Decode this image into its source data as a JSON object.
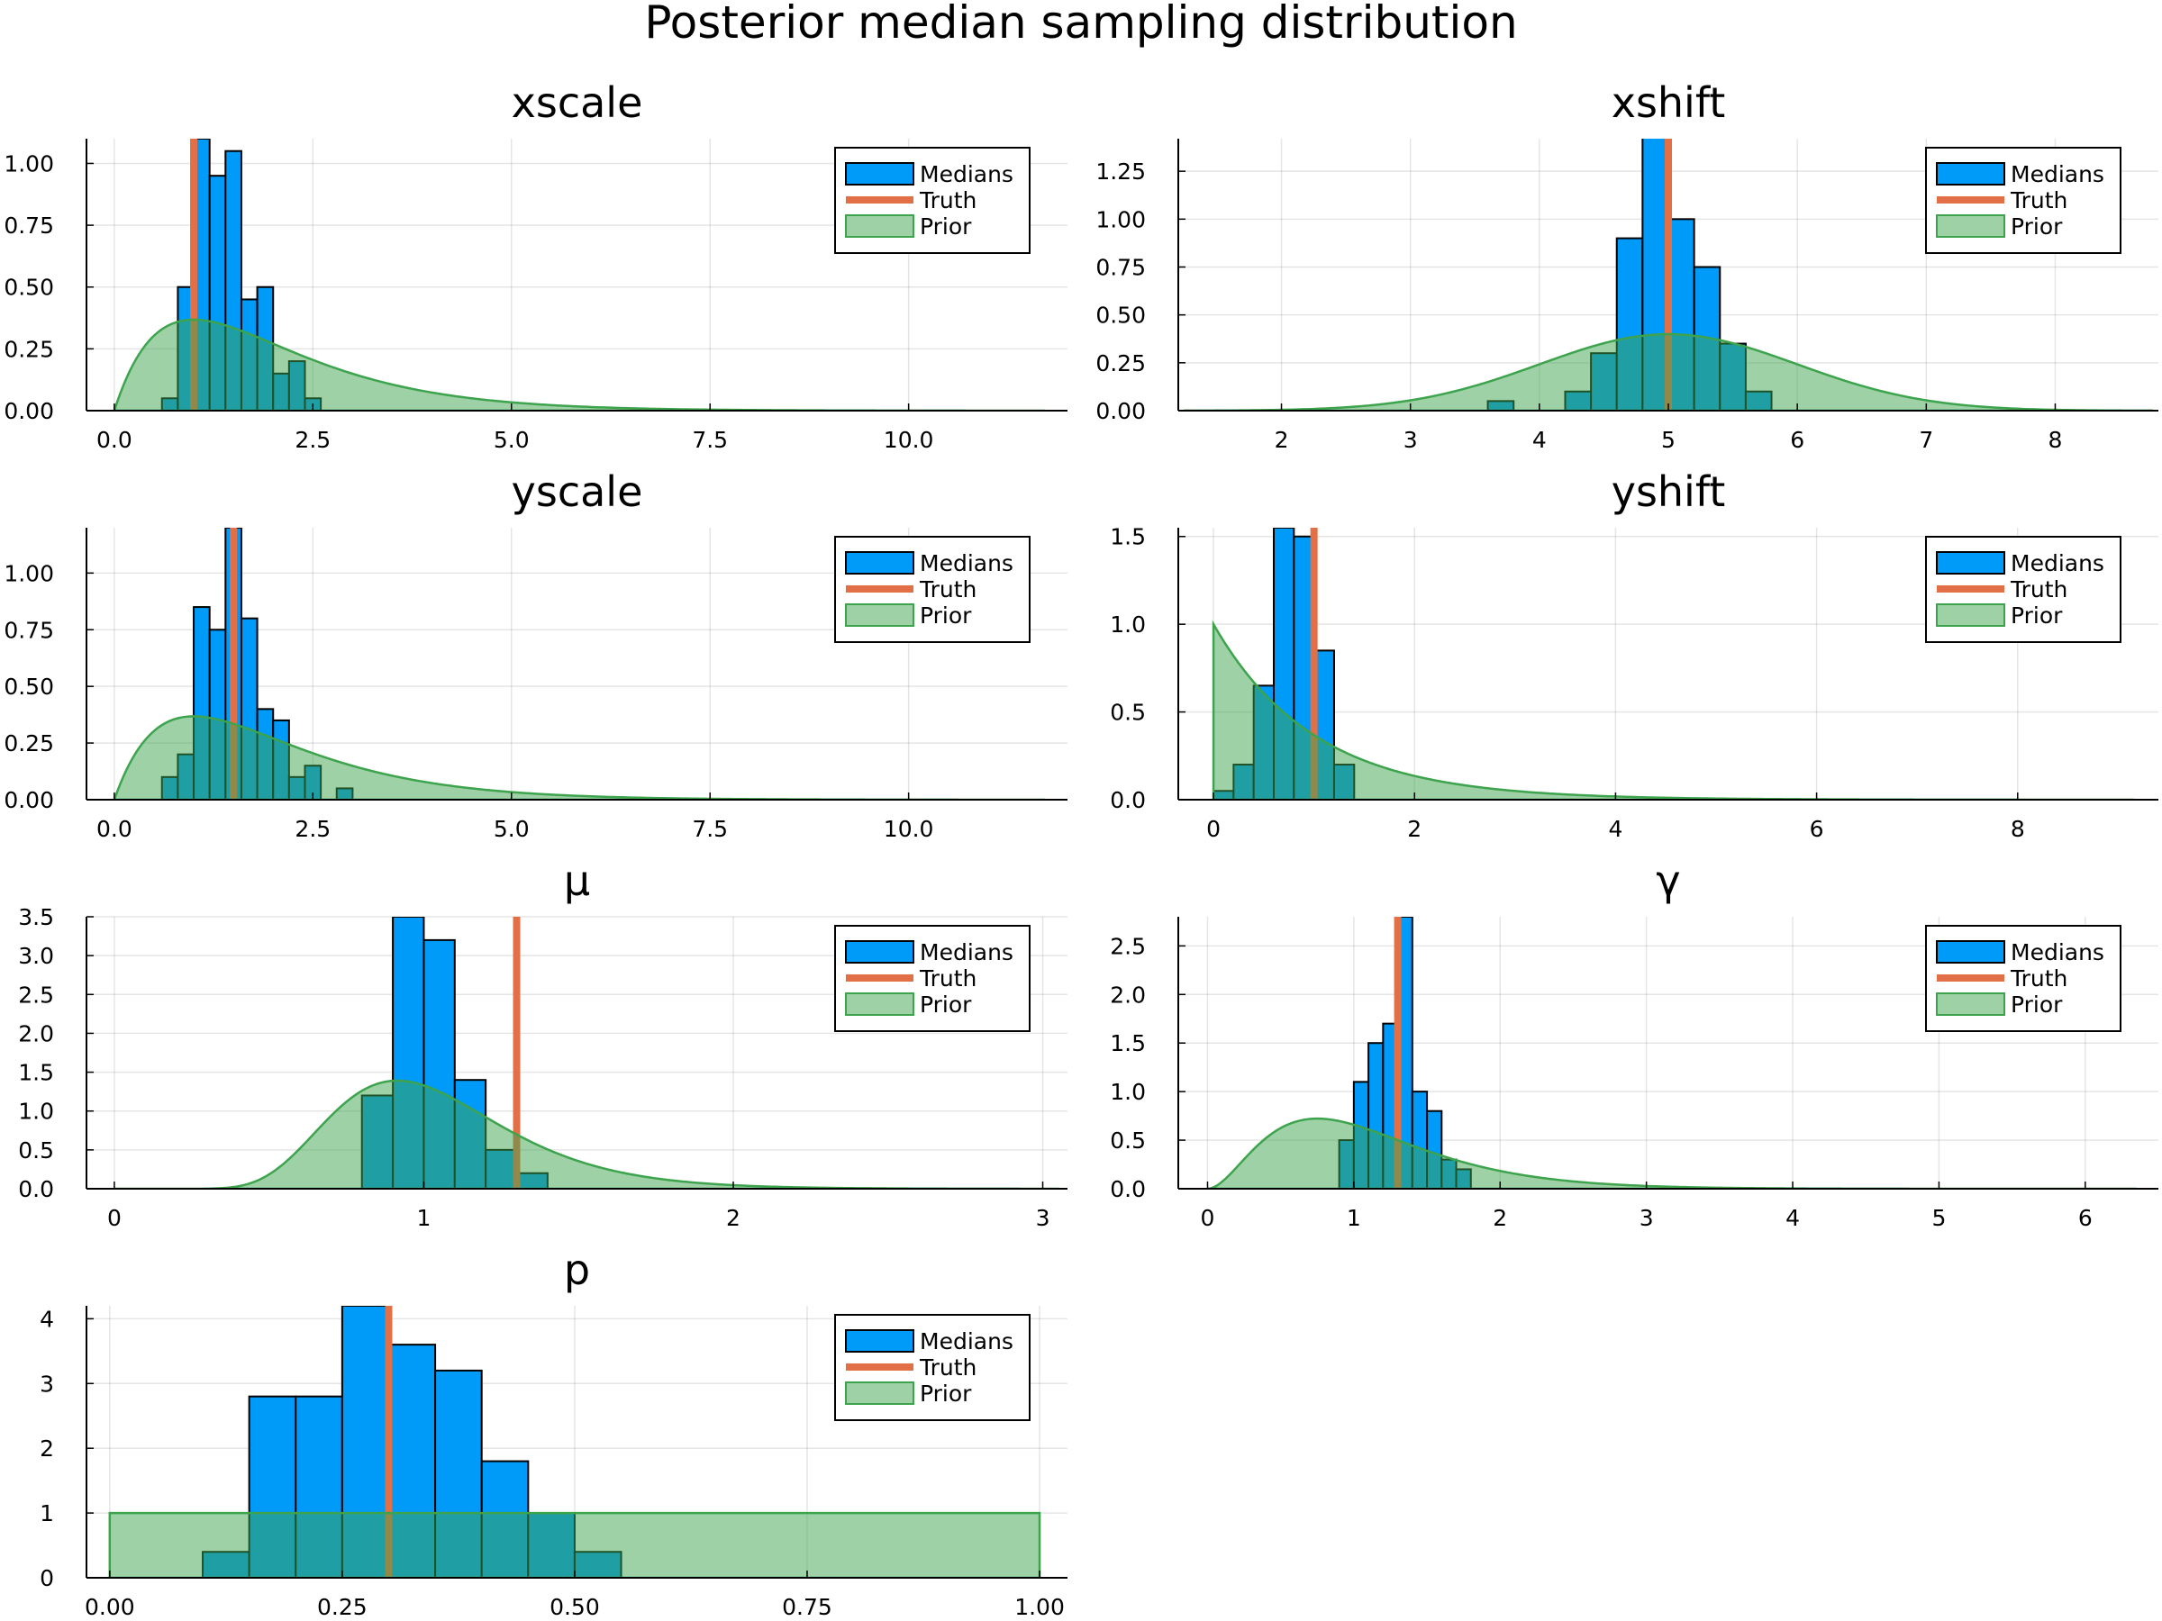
{
  "figure": {
    "title": "Posterior median sampling distribution",
    "colors": {
      "medians": "#009af9",
      "truth": "#e26f46",
      "prior": "#3da44d",
      "overlap": "#1b9a9e"
    }
  },
  "legend_labels": [
    "Medians",
    "Truth",
    "Prior"
  ],
  "chart_data": [
    {
      "type": "bar",
      "title": "xscale",
      "xlim": [
        -0.35,
        12.0
      ],
      "ylim": [
        0,
        1.1
      ],
      "xticks": [
        0,
        2.5,
        5,
        7.5,
        10
      ],
      "xticklabels": [
        "0.0",
        "2.5",
        "5.0",
        "7.5",
        "10.0"
      ],
      "yticks": [
        0,
        0.25,
        0.5,
        0.75,
        1.0
      ],
      "yticklabels": [
        "0.00",
        "0.25",
        "0.50",
        "0.75",
        "1.00"
      ],
      "legend": "top-right",
      "grid": true,
      "bin_width": 0.2,
      "bins": [
        0.6,
        0.8,
        1.0,
        1.2,
        1.4,
        1.6,
        1.8,
        2.0,
        2.2,
        2.4
      ],
      "values": [
        0.05,
        0.5,
        1.1,
        0.95,
        1.05,
        0.45,
        0.5,
        0.15,
        0.2,
        0.05
      ],
      "truth": 1.0,
      "prior": {
        "kind": "gamma",
        "shape": 2,
        "scale": 1,
        "xmax": 11.7
      }
    },
    {
      "type": "bar",
      "title": "xshift",
      "xlim": [
        1.2,
        8.8
      ],
      "ylim": [
        0,
        1.42
      ],
      "xticks": [
        2,
        3,
        4,
        5,
        6,
        7,
        8
      ],
      "xticklabels": [
        "2",
        "3",
        "4",
        "5",
        "6",
        "7",
        "8"
      ],
      "yticks": [
        0,
        0.25,
        0.5,
        0.75,
        1.0,
        1.25
      ],
      "yticklabels": [
        "0.00",
        "0.25",
        "0.50",
        "0.75",
        "1.00",
        "1.25"
      ],
      "legend": "top-right",
      "grid": true,
      "bin_width": 0.2,
      "bins": [
        3.6,
        3.8,
        4.0,
        4.2,
        4.4,
        4.6,
        4.8,
        5.0,
        5.2,
        5.4,
        5.6
      ],
      "values": [
        0.05,
        0,
        0,
        0.1,
        0.3,
        0.9,
        1.5,
        1.0,
        0.75,
        0.35,
        0.1
      ],
      "truth": 5.0,
      "prior": {
        "kind": "normal",
        "mean": 5,
        "sd": 1,
        "xmin": 1.25,
        "xmax": 8.75
      }
    },
    {
      "type": "bar",
      "title": "yscale",
      "xlim": [
        -0.35,
        12.0
      ],
      "ylim": [
        0,
        1.2
      ],
      "xticks": [
        0,
        2.5,
        5,
        7.5,
        10
      ],
      "xticklabels": [
        "0.0",
        "2.5",
        "5.0",
        "7.5",
        "10.0"
      ],
      "yticks": [
        0,
        0.25,
        0.5,
        0.75,
        1.0
      ],
      "yticklabels": [
        "0.00",
        "0.25",
        "0.50",
        "0.75",
        "1.00"
      ],
      "legend": "top-right",
      "grid": true,
      "bin_width": 0.2,
      "bins": [
        0.6,
        0.8,
        1.0,
        1.2,
        1.4,
        1.6,
        1.8,
        2.0,
        2.2,
        2.4,
        2.6,
        2.8
      ],
      "values": [
        0.1,
        0.2,
        0.85,
        0.75,
        1.2,
        0.8,
        0.4,
        0.35,
        0.1,
        0.15,
        0,
        0.05
      ],
      "truth": 1.5,
      "prior": {
        "kind": "gamma",
        "shape": 2,
        "scale": 1,
        "xmax": 11.7
      }
    },
    {
      "type": "bar",
      "title": "yshift",
      "xlim": [
        -0.35,
        9.4
      ],
      "ylim": [
        0,
        1.55
      ],
      "xticks": [
        0,
        2,
        4,
        6,
        8
      ],
      "xticklabels": [
        "0",
        "2",
        "4",
        "6",
        "8"
      ],
      "yticks": [
        0,
        0.5,
        1.0,
        1.5
      ],
      "yticklabels": [
        "0.0",
        "0.5",
        "1.0",
        "1.5"
      ],
      "legend": "top-right",
      "grid": true,
      "bin_width": 0.2,
      "bins": [
        0,
        0.2,
        0.4,
        0.6,
        0.8,
        1.0,
        1.2
      ],
      "values": [
        0.05,
        0.2,
        0.65,
        1.55,
        1.5,
        0.85,
        0.2
      ],
      "truth": 1.0,
      "prior": {
        "kind": "exponential",
        "rate": 1,
        "xmax": 9.15
      }
    },
    {
      "type": "bar",
      "title": "μ",
      "xlim": [
        -0.09,
        3.08
      ],
      "ylim": [
        0,
        3.5
      ],
      "xticks": [
        0,
        1,
        2,
        3
      ],
      "xticklabels": [
        "0",
        "1",
        "2",
        "3"
      ],
      "yticks": [
        0,
        0.5,
        1.0,
        1.5,
        2.0,
        2.5,
        3.0,
        3.5
      ],
      "yticklabels": [
        "0.0",
        "0.5",
        "1.0",
        "1.5",
        "2.0",
        "2.5",
        "3.0",
        "3.5"
      ],
      "legend": "top-right",
      "grid": true,
      "bin_width": 0.1,
      "bins": [
        0.8,
        0.9,
        1.0,
        1.1,
        1.2,
        1.3
      ],
      "values": [
        1.2,
        3.5,
        3.2,
        1.4,
        0.5,
        0.2
      ],
      "truth": 1.3,
      "prior": {
        "kind": "lognormal",
        "mu": 0,
        "sigma": 0.3,
        "xmax": 3.05
      }
    },
    {
      "type": "bar",
      "title": "γ",
      "xlim": [
        -0.2,
        6.5
      ],
      "ylim": [
        0,
        2.8
      ],
      "xticks": [
        0,
        1,
        2,
        3,
        4,
        5,
        6
      ],
      "xticklabels": [
        "0",
        "1",
        "2",
        "3",
        "4",
        "5",
        "6"
      ],
      "yticks": [
        0,
        0.5,
        1.0,
        1.5,
        2.0,
        2.5
      ],
      "yticklabels": [
        "0.0",
        "0.5",
        "1.0",
        "1.5",
        "2.0",
        "2.5"
      ],
      "legend": "top-right",
      "grid": true,
      "bin_width": 0.1,
      "bins": [
        0.9,
        1.0,
        1.1,
        1.2,
        1.3,
        1.4,
        1.5,
        1.6,
        1.7
      ],
      "values": [
        0.5,
        1.1,
        1.5,
        1.7,
        2.8,
        1.0,
        0.8,
        0.3,
        0.2
      ],
      "truth": 1.3,
      "prior": {
        "kind": "gamma",
        "shape": 3,
        "scale": 0.375,
        "xmax": 6.35
      }
    },
    {
      "type": "bar",
      "title": "p",
      "xlim": [
        -0.025,
        1.03
      ],
      "ylim": [
        0,
        4.2
      ],
      "xticks": [
        0,
        0.25,
        0.5,
        0.75,
        1.0
      ],
      "xticklabels": [
        "0.00",
        "0.25",
        "0.50",
        "0.75",
        "1.00"
      ],
      "yticks": [
        0,
        1,
        2,
        3,
        4
      ],
      "yticklabels": [
        "0",
        "1",
        "2",
        "3",
        "4"
      ],
      "legend": "top-right",
      "grid": true,
      "bin_width": 0.05,
      "bins": [
        0.1,
        0.15,
        0.2,
        0.25,
        0.3,
        0.35,
        0.4,
        0.45,
        0.5
      ],
      "values": [
        0.4,
        2.8,
        2.8,
        4.2,
        3.6,
        3.2,
        1.8,
        1.0,
        0.4
      ],
      "truth": 0.3,
      "prior": {
        "kind": "uniform",
        "xmin": 0,
        "xmax": 1
      }
    }
  ]
}
